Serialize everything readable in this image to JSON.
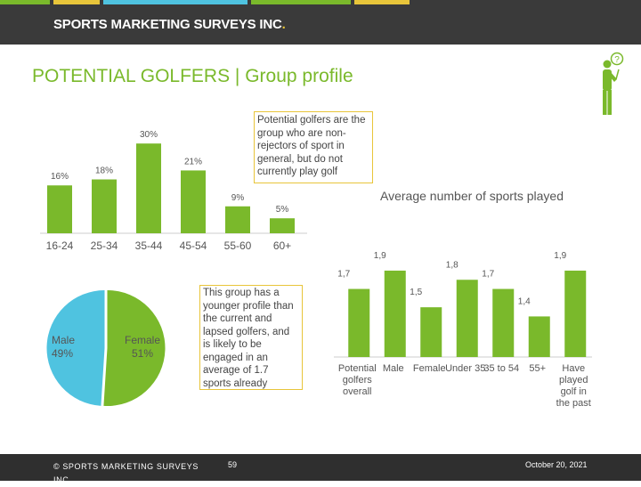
{
  "header": {
    "brand": "SPORTS MARKETING SURVEYS INC",
    "brand_dot": ".",
    "stripe_colors": [
      "#7ab92b",
      "#e8c53a",
      "#4fc3e0",
      "#7ab92b",
      "#e8c53a"
    ]
  },
  "page_title": "POTENTIAL GOLFERS  |  Group profile",
  "callout_top": "Potential golfers are the group who are non-rejectors of sport in general, but do not currently play golf",
  "callout_bottom": "This group has a younger profile than the current and lapsed golfers, and is likely to be engaged in an average of 1.7 sports already",
  "icon": "golfer-icon",
  "colors": {
    "green": "#7ab92b",
    "blue": "#4fc3e0",
    "yellow": "#e8c53a",
    "dark": "#3a3a3a"
  },
  "footer": {
    "copyright": "© SPORTS MARKETING SURVEYS INC.",
    "page_number": "59",
    "date": "October 20, 2021"
  },
  "chart_data": [
    {
      "type": "bar",
      "categories": [
        "16-24",
        "25-34",
        "35-44",
        "45-54",
        "55-60",
        "60+"
      ],
      "values": [
        16,
        18,
        30,
        21,
        9,
        5
      ],
      "labels": [
        "16%",
        "18%",
        "30%",
        "21%",
        "9%",
        "5%"
      ],
      "ylim": [
        0,
        30
      ]
    },
    {
      "type": "pie",
      "slices": [
        {
          "label": "Male",
          "value": 49,
          "display": "49%",
          "color": "#4fc3e0"
        },
        {
          "label": "Female",
          "value": 51,
          "display": "51%",
          "color": "#7ab92b"
        }
      ]
    },
    {
      "type": "bar",
      "title": "Average number of sports played",
      "categories": [
        "Potential golfers overall",
        "Male",
        "Female",
        "Under 35",
        "35 to 54",
        "55+",
        "Have played golf in the past"
      ],
      "values": [
        1.7,
        1.9,
        1.5,
        1.8,
        1.7,
        1.4,
        1.9
      ],
      "labels": [
        "1,7",
        "1,9",
        "1,5",
        "1,8",
        "1,7",
        "1,4",
        "1,9"
      ]
    }
  ]
}
